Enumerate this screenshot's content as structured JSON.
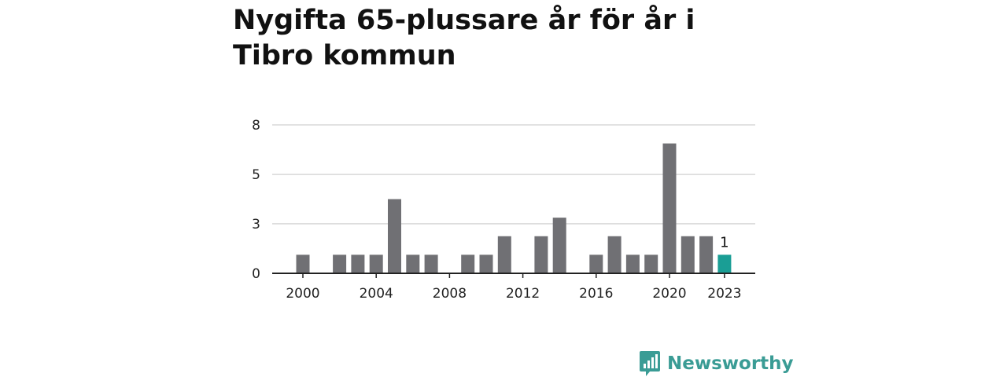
{
  "title": "Nygifta 65-plussare år för år i Tibro kommun",
  "brand": {
    "name": "Newsworthy",
    "color": "#3a9c95"
  },
  "chart_data": {
    "type": "bar",
    "title": "Nygifta 65-plussare år för år i Tibro kommun",
    "xlabel": "",
    "ylabel": "",
    "categories": [
      2000,
      2001,
      2002,
      2003,
      2004,
      2005,
      2006,
      2007,
      2008,
      2009,
      2010,
      2011,
      2012,
      2013,
      2014,
      2015,
      2016,
      2017,
      2018,
      2019,
      2020,
      2021,
      2022,
      2023
    ],
    "values": [
      1,
      0,
      1,
      1,
      1,
      4,
      1,
      1,
      0,
      1,
      1,
      2,
      0,
      2,
      3,
      0,
      1,
      2,
      1,
      1,
      7,
      2,
      2,
      1
    ],
    "ylim": [
      0,
      8
    ],
    "yticks": [
      {
        "value": 0,
        "label": "0"
      },
      {
        "value": 2.67,
        "label": "3"
      },
      {
        "value": 5.33,
        "label": "5"
      },
      {
        "value": 8,
        "label": "8"
      }
    ],
    "xticks": [
      "2000",
      "2004",
      "2008",
      "2012",
      "2016",
      "2020",
      "2023"
    ],
    "highlight": {
      "category": 2023,
      "label": "1"
    },
    "grid": true,
    "colors": {
      "bar": "#707074",
      "highlight": "#1a9e95",
      "grid": "#d8d8d8",
      "axis": "#222222"
    }
  }
}
